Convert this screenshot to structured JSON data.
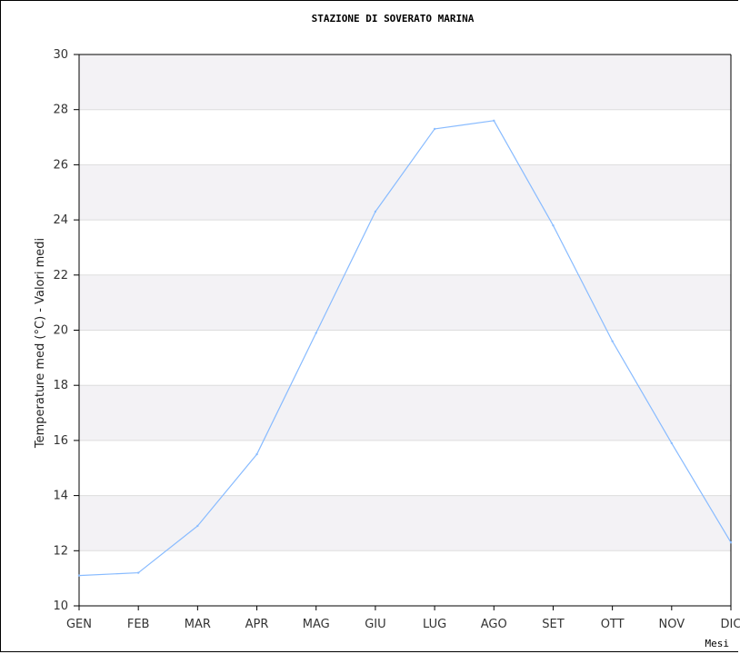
{
  "chart_data": {
    "type": "line",
    "title": "STAZIONE DI SOVERATO MARINA",
    "xlabel": "Mesi",
    "ylabel": "Temperature med (°C) - Valori medi",
    "categories": [
      "GEN",
      "FEB",
      "MAR",
      "APR",
      "MAG",
      "GIU",
      "LUG",
      "AGO",
      "SET",
      "OTT",
      "NOV",
      "DIC"
    ],
    "series": [
      {
        "values": [
          11.1,
          11.2,
          12.9,
          15.5,
          19.9,
          24.3,
          27.3,
          27.6,
          23.8,
          19.6,
          15.9,
          12.3
        ]
      }
    ],
    "ylim": [
      10,
      30
    ],
    "yticks": [
      10,
      12,
      14,
      16,
      18,
      20,
      22,
      24,
      26,
      28,
      30
    ],
    "grid": "horizontal bands",
    "legend": "none",
    "colors": {
      "line": "#88bbff",
      "band": "#f3f2f5",
      "grid": "#dddddd",
      "axis": "#000000"
    }
  }
}
